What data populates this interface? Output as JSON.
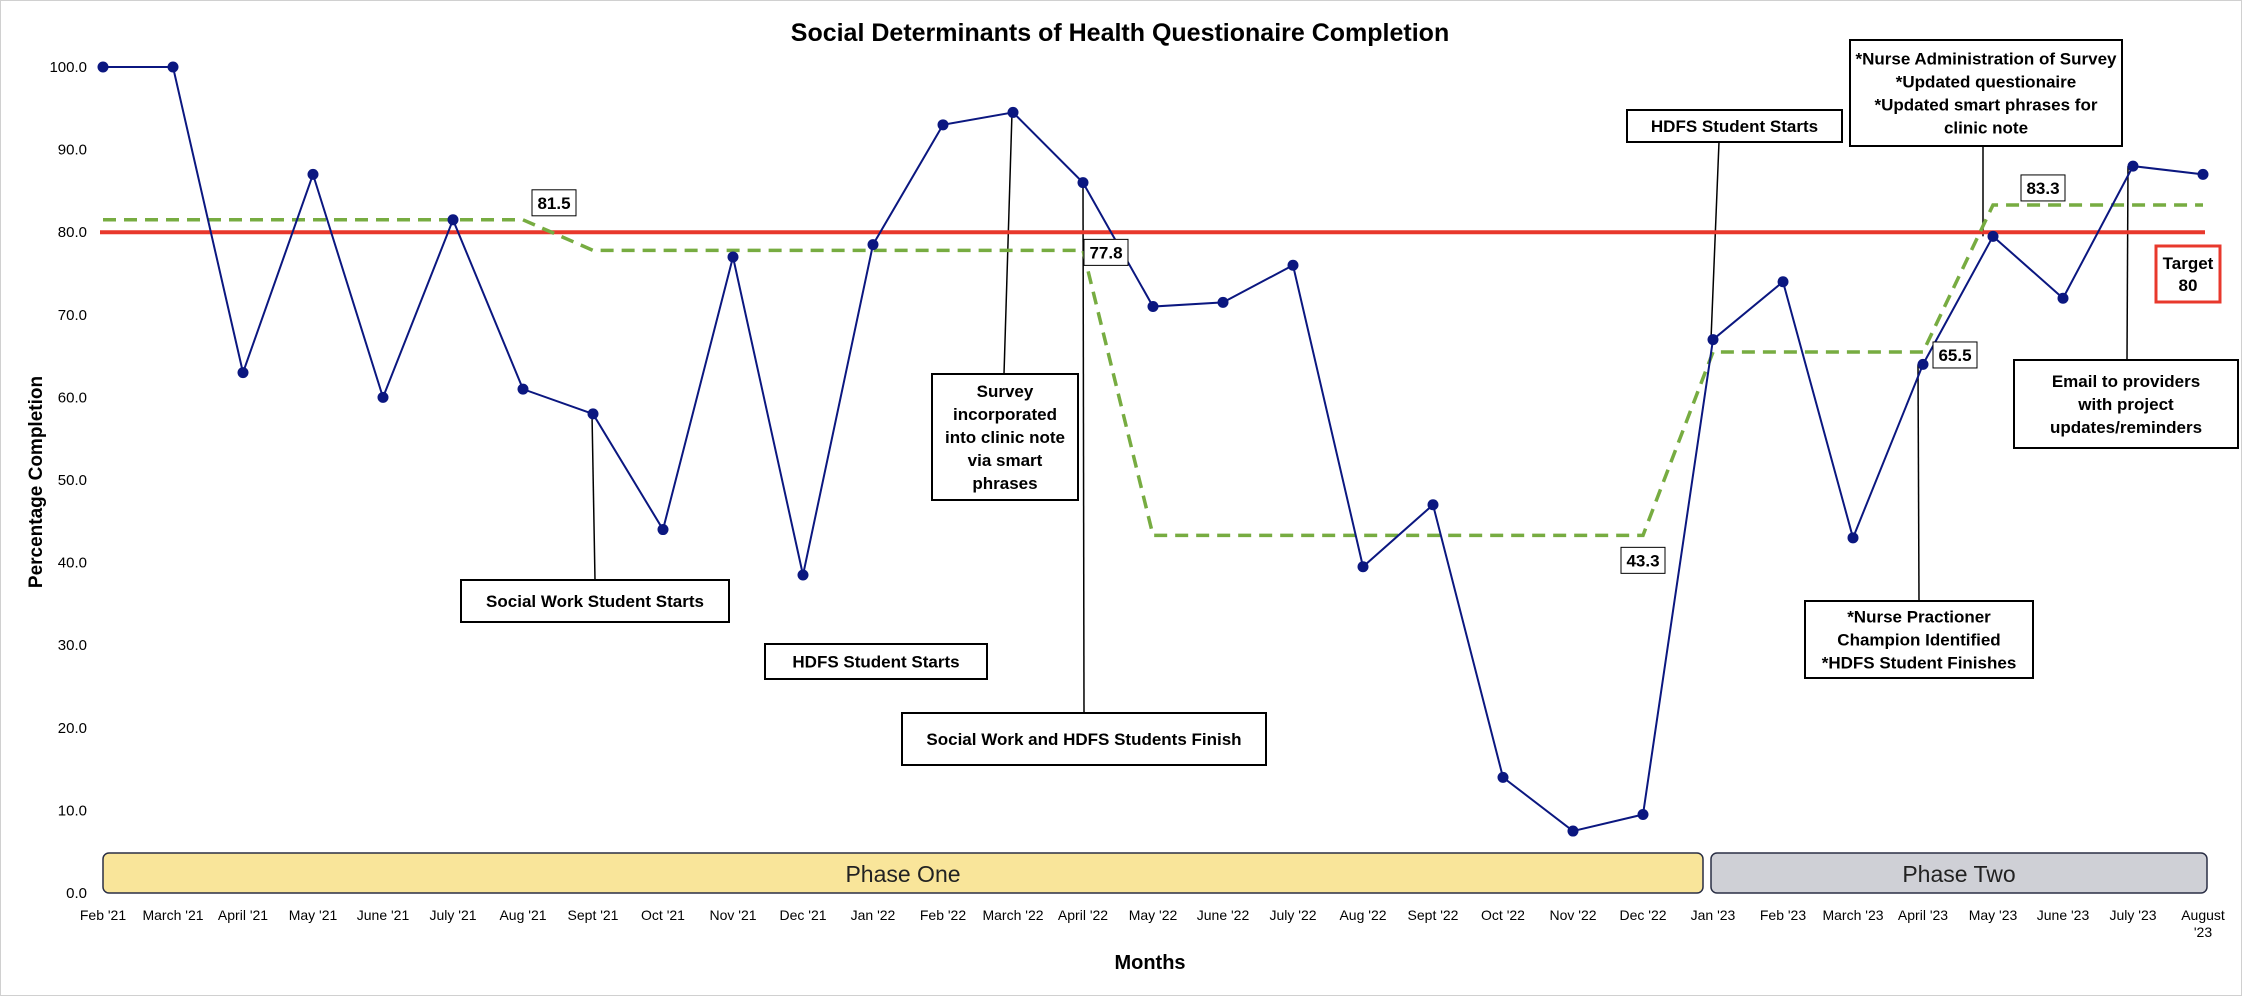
{
  "chart_data": {
    "type": "line",
    "title": "Social Determinants of Health Questionaire Completion",
    "xlabel": "Months",
    "ylabel": "Percentage Completion",
    "ylim": [
      0,
      100
    ],
    "yticks": [
      "0.0",
      "10.0",
      "20.0",
      "30.0",
      "40.0",
      "50.0",
      "60.0",
      "70.0",
      "80.0",
      "90.0",
      "100.0"
    ],
    "grid": false,
    "categories": [
      "Feb '21",
      "March '21",
      "April '21",
      "May '21",
      "June '21",
      "July '21",
      "Aug '21",
      "Sept '21",
      "Oct '21",
      "Nov '21",
      "Dec '21",
      "Jan '22",
      "Feb '22",
      "March '22",
      "April '22",
      "May '22",
      "June '22",
      "July '22",
      "Aug '22",
      "Sept '22",
      "Oct '22",
      "Nov '22",
      "Dec '22",
      "Jan '23",
      "Feb '23",
      "March '23",
      "April '23",
      "May '23",
      "June '23",
      "July '23",
      "August '23"
    ],
    "series": [
      {
        "kind": "data",
        "color": "#0b1780",
        "values": [
          100.0,
          100.0,
          63.0,
          87.0,
          60.0,
          81.5,
          61.0,
          58.0,
          44.0,
          77.0,
          38.5,
          78.5,
          93.0,
          94.5,
          86.0,
          71.0,
          71.5,
          76.0,
          39.5,
          47.0,
          14.0,
          7.5,
          9.5,
          67.0,
          74.0,
          43.0,
          64.0,
          79.5,
          72.0,
          88.0,
          87.0
        ]
      },
      {
        "kind": "median",
        "color": "#77ac41",
        "values": [
          81.5,
          81.5,
          81.5,
          81.5,
          81.5,
          81.5,
          81.5,
          77.8,
          77.8,
          77.8,
          77.8,
          77.8,
          77.8,
          77.8,
          77.8,
          43.3,
          43.3,
          43.3,
          43.3,
          43.3,
          43.3,
          43.3,
          43.3,
          65.5,
          65.5,
          65.5,
          65.5,
          83.3,
          83.3,
          83.3,
          83.3
        ]
      },
      {
        "kind": "target",
        "color": "#e8382c",
        "values": [
          80,
          80,
          80,
          80,
          80,
          80,
          80,
          80,
          80,
          80,
          80,
          80,
          80,
          80,
          80,
          80,
          80,
          80,
          80,
          80,
          80,
          80,
          80,
          80,
          80,
          80,
          80,
          80,
          80,
          80,
          80
        ]
      }
    ],
    "median_labels": [
      {
        "text": "81.5",
        "at": 6,
        "value": 81.5
      },
      {
        "text": "77.8",
        "at": 14,
        "value": 77.8
      },
      {
        "text": "43.3",
        "at": 22,
        "value": 43.3
      },
      {
        "text": "65.5",
        "at": 26,
        "value": 65.5
      },
      {
        "text": "83.3",
        "at": 27,
        "value": 83.3
      }
    ],
    "target_label": {
      "lines": [
        "Target",
        "80"
      ]
    },
    "phases": [
      {
        "label": "Phase One",
        "from": 0,
        "to": 22,
        "color": "#f9e59a"
      },
      {
        "label": "Phase Two",
        "from": 23,
        "to": 30,
        "color": "#cfd0d6"
      }
    ],
    "annotations": [
      {
        "lines": [
          "Social Work Student Starts"
        ],
        "at": 7
      },
      {
        "lines": [
          "HDFS Student Starts"
        ]
      },
      {
        "lines": [
          "Survey",
          "incorporated",
          "into clinic note",
          "via smart",
          "phrases"
        ],
        "at": 13
      },
      {
        "lines": [
          "Social Work and HDFS Students Finish"
        ],
        "at": 14
      },
      {
        "lines": [
          "HDFS Student Starts"
        ],
        "at": 23
      },
      {
        "lines": [
          "*Nurse Administration of Survey",
          "*Updated questionaire",
          "*Updated smart phrases for",
          "clinic note"
        ],
        "at": 27
      },
      {
        "lines": [
          "*Nurse Practioner",
          "Champion Identified",
          "*HDFS Student Finishes"
        ],
        "at": 26
      },
      {
        "lines": [
          "Email to providers",
          "with project",
          "updates/reminders"
        ],
        "at": 29
      }
    ],
    "colors": {
      "data": "#0b1780",
      "median": "#77ac41",
      "target": "#e8382c",
      "phase_one": "#f9e59a",
      "phase_two": "#cfd0d6"
    }
  }
}
